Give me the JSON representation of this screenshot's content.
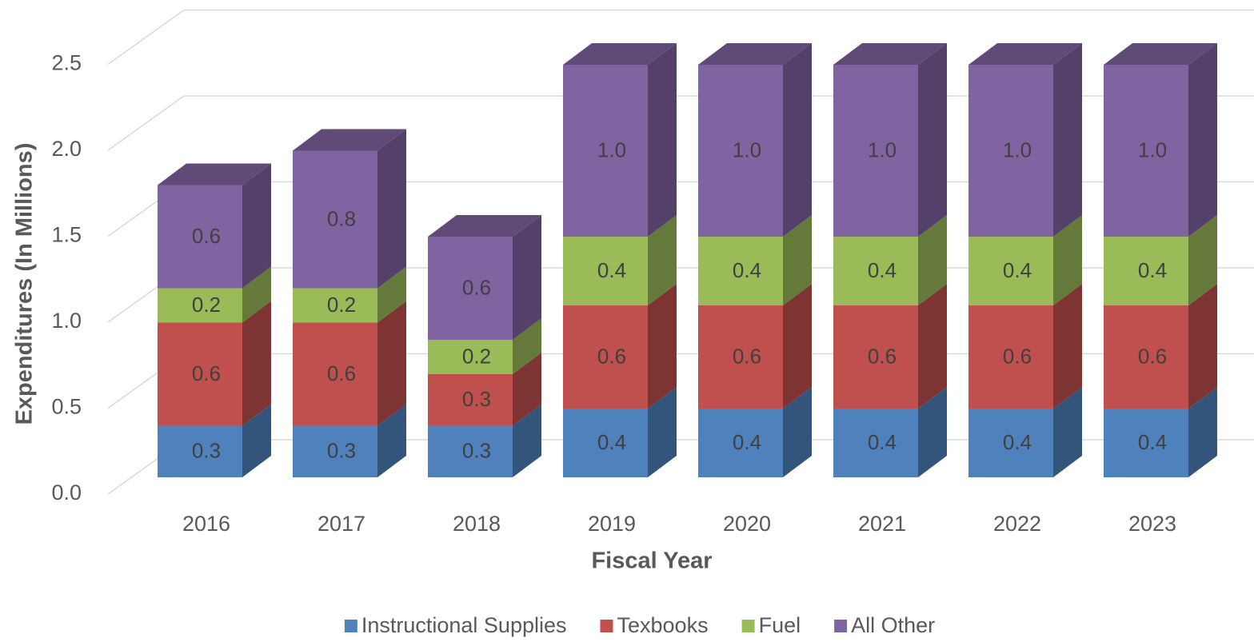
{
  "chart_data": {
    "type": "bar3d_stacked",
    "x_label": "Fiscal Year",
    "y_label": "Expenditures (In Millions)",
    "categories": [
      "2016",
      "2017",
      "2018",
      "2019",
      "2020",
      "2021",
      "2022",
      "2023"
    ],
    "series": [
      {
        "name": "Instructional Supplies",
        "color": "#4f81bd",
        "values": [
          0.3,
          0.3,
          0.3,
          0.4,
          0.4,
          0.4,
          0.4,
          0.4
        ]
      },
      {
        "name": "Texbooks",
        "color": "#c0504d",
        "values": [
          0.6,
          0.6,
          0.3,
          0.6,
          0.6,
          0.6,
          0.6,
          0.6
        ]
      },
      {
        "name": "Fuel",
        "color": "#9bbb59",
        "values": [
          0.2,
          0.2,
          0.2,
          0.4,
          0.4,
          0.4,
          0.4,
          0.4
        ]
      },
      {
        "name": "All Other",
        "color": "#8064a2",
        "values": [
          0.6,
          0.8,
          0.6,
          1.0,
          1.0,
          1.0,
          1.0,
          1.0
        ],
        "value_labels": [
          "0.6",
          "0.8",
          "0.6",
          "1.0",
          "1.0",
          "1.0",
          "1.0",
          "1.0"
        ]
      }
    ],
    "ylim": [
      0,
      2.5
    ],
    "yticks": [
      {
        "value": 0,
        "label": "0.0"
      },
      0.5,
      {
        "value": 1,
        "label": "1.0"
      },
      1.5,
      {
        "value": 2,
        "label": "2.0"
      },
      2.5
    ],
    "grid": true,
    "legend": "bottom"
  }
}
